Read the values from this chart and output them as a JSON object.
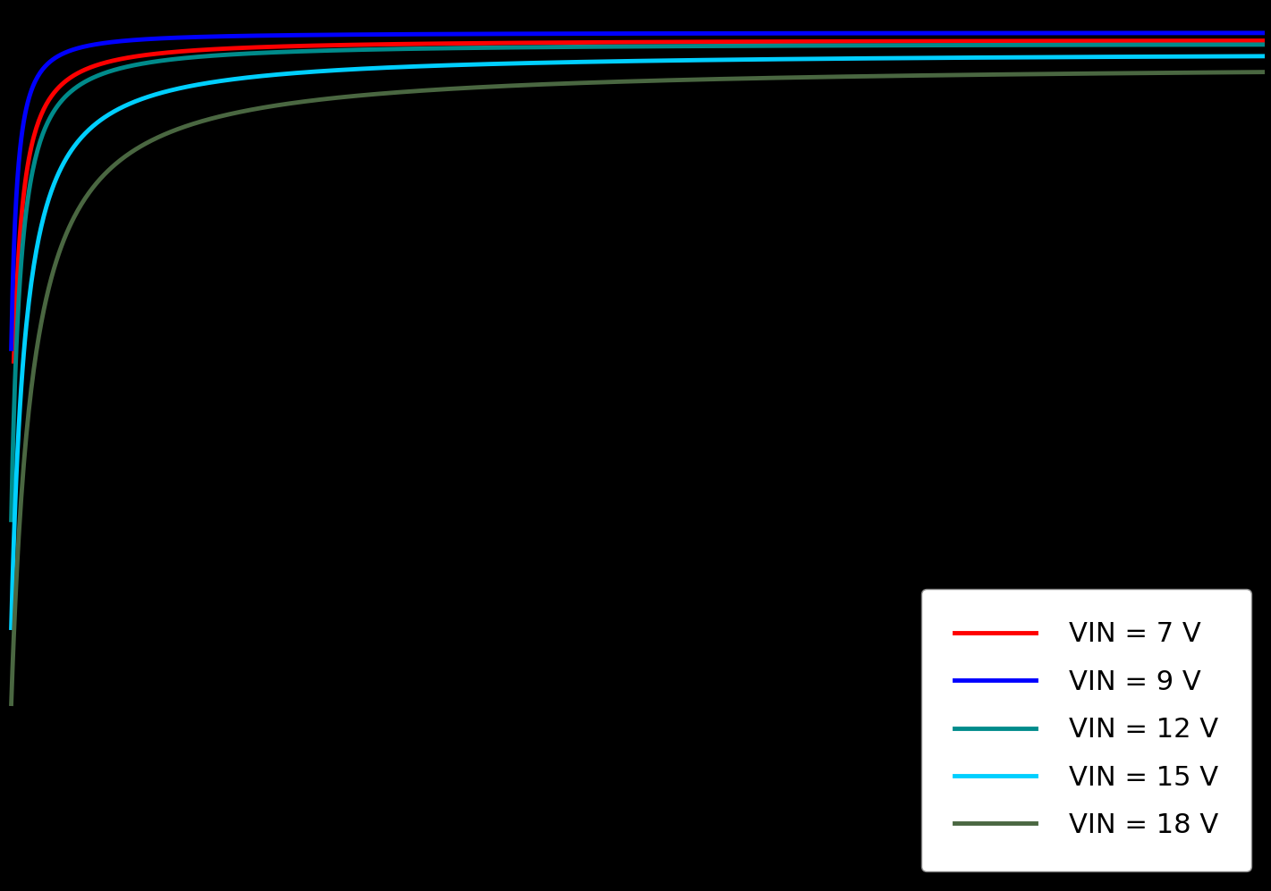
{
  "title": "",
  "xlabel": "",
  "ylabel": "",
  "background_color": "#000000",
  "axes_background_color": "#000000",
  "text_color": "#ffffff",
  "legend_bg": "#ffffff",
  "legend_text_color": "#000000",
  "series": [
    {
      "label": "VIN = 7 V",
      "color": "#ff0000",
      "x_start": 0.018,
      "x_end": 3.0,
      "eta_max": 96.2,
      "alpha": 1.2,
      "x0": 0.012
    },
    {
      "label": "VIN = 9 V",
      "color": "#0000ff",
      "x_start": 0.012,
      "x_end": 3.0,
      "eta_max": 97.0,
      "alpha": 1.3,
      "x0": 0.008
    },
    {
      "label": "VIN = 12 V",
      "color": "#008b8b",
      "x_start": 0.012,
      "x_end": 3.0,
      "eta_max": 95.8,
      "alpha": 1.2,
      "x0": 0.015
    },
    {
      "label": "VIN = 15 V",
      "color": "#00cfff",
      "x_start": 0.012,
      "x_end": 3.0,
      "eta_max": 94.8,
      "alpha": 1.1,
      "x0": 0.025
    },
    {
      "label": "VIN = 18 V",
      "color": "#4a6741",
      "x_start": 0.012,
      "x_end": 3.0,
      "eta_max": 93.5,
      "alpha": 1.05,
      "x0": 0.04
    }
  ],
  "xlim": [
    0.0,
    3.0
  ],
  "ylim": [
    0,
    100
  ],
  "figsize": [
    14.21,
    9.97
  ],
  "dpi": 100,
  "linewidth": 3.5,
  "legend_fontsize": 22,
  "legend_loc": "lower right"
}
